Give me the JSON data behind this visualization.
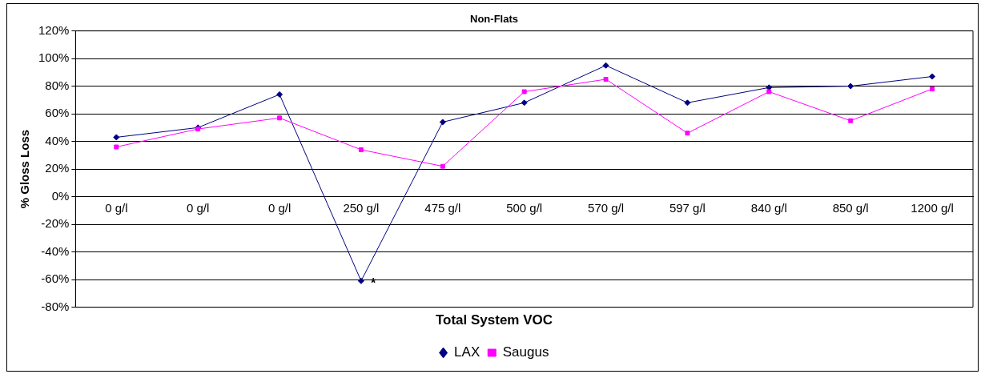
{
  "chart_data": {
    "type": "line",
    "title": "Non-Flats",
    "xlabel": "Total System VOC",
    "ylabel": "% Gloss Loss",
    "categories": [
      "0 g/l",
      "0 g/l",
      "0 g/l",
      "250 g/l",
      "475 g/l",
      "500 g/l",
      "570 g/l",
      "597 g/l",
      "840 g/l",
      "850 g/l",
      "1200 g/l"
    ],
    "series": [
      {
        "name": "LAX",
        "color": "#000080",
        "marker": "diamond",
        "values": [
          43,
          50,
          74,
          -61,
          54,
          68,
          95,
          68,
          79,
          80,
          87
        ]
      },
      {
        "name": "Saugus",
        "color": "#ff00ff",
        "marker": "square",
        "values": [
          36,
          49,
          57,
          34,
          22,
          76,
          85,
          46,
          76,
          55,
          78
        ]
      }
    ],
    "ylim": [
      -80,
      120
    ],
    "yticks": [
      {
        "value": -80,
        "label": "-80%"
      },
      {
        "value": -60,
        "label": "-60%"
      },
      {
        "value": -40,
        "label": "-40%"
      },
      {
        "value": -20,
        "label": "-20%"
      },
      {
        "value": 0,
        "label": "0%"
      },
      {
        "value": 20,
        "label": "20%"
      },
      {
        "value": 40,
        "label": "40%"
      },
      {
        "value": 60,
        "label": "60%"
      },
      {
        "value": 80,
        "label": "80%"
      },
      {
        "value": 100,
        "label": "100%"
      },
      {
        "value": 120,
        "label": "120%"
      }
    ],
    "grid": "y",
    "legend": "bottom",
    "line_style": "solid",
    "annotations": [
      {
        "text": "*",
        "x": "250 g/l",
        "y": -61
      }
    ]
  }
}
